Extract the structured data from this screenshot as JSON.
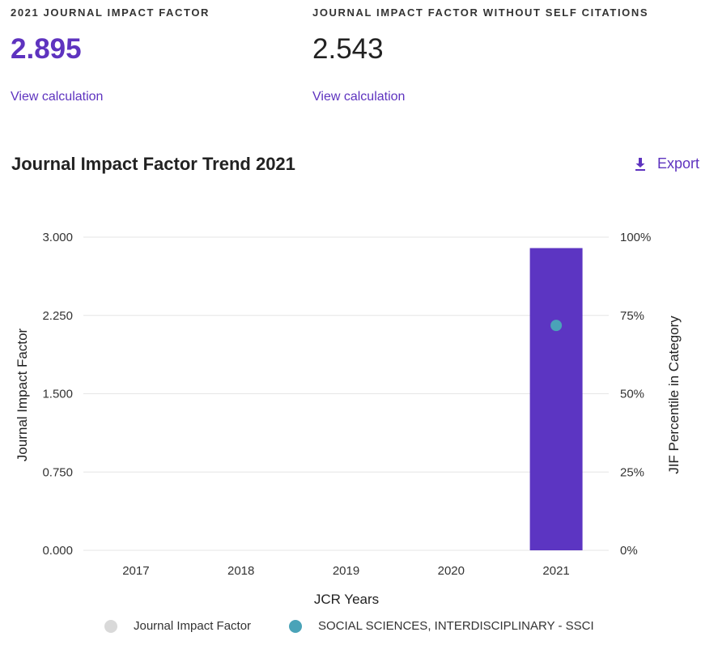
{
  "metrics": [
    {
      "label": "2021 JOURNAL IMPACT FACTOR",
      "value": "2.895",
      "link": "View calculation"
    },
    {
      "label": "JOURNAL IMPACT FACTOR WITHOUT SELF CITATIONS",
      "value": "2.543",
      "link": "View calculation"
    }
  ],
  "trend": {
    "title": "Journal Impact Factor Trend 2021",
    "export_label": "Export",
    "export_icon": "download-icon"
  },
  "colors": {
    "accent": "#5e33bf",
    "bar": "#5c35c2",
    "category_point": "#4aa3b8",
    "jif_legend": "#d9d9d9",
    "grid": "#e6e6e6"
  },
  "chart_data": {
    "type": "bar",
    "categories": [
      "2017",
      "2018",
      "2019",
      "2020",
      "2021"
    ],
    "xlabel": "JCR Years",
    "ylabel": "Journal Impact Factor",
    "y2label": "JIF Percentile in Category",
    "ylim": [
      0,
      3
    ],
    "y2lim": [
      0,
      100
    ],
    "yticks": [
      "0.000",
      "0.750",
      "1.500",
      "2.250",
      "3.000"
    ],
    "y2ticks": [
      "0%",
      "25%",
      "50%",
      "75%",
      "100%"
    ],
    "grid": true,
    "legend_placement": "bottom",
    "series": [
      {
        "name": "Journal Impact Factor",
        "kind": "bar",
        "axis": "left",
        "values": [
          null,
          null,
          null,
          null,
          2.895
        ]
      },
      {
        "name": "SOCIAL SCIENCES, INTERDISCIPLINARY - SSCI",
        "kind": "point",
        "axis": "right",
        "values": [
          null,
          null,
          null,
          null,
          71.8
        ]
      }
    ]
  }
}
